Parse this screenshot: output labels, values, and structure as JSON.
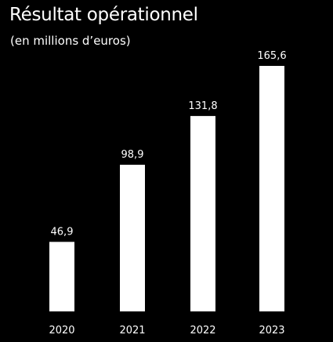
{
  "chart_data": {
    "type": "bar",
    "title": "Résultat opérationnel",
    "subtitle": "(en millions d’euros)",
    "categories": [
      "2020",
      "2021",
      "2022",
      "2023"
    ],
    "values": [
      46.9,
      98.9,
      131.8,
      165.6
    ],
    "value_labels": [
      "46,9",
      "98,9",
      "131,8",
      "165,6"
    ],
    "xlabel": "",
    "ylabel": "",
    "ylim": [
      0,
      165.6
    ],
    "grid": false,
    "legend": "none",
    "colors": {
      "background": "#000000",
      "bar": "#ffffff",
      "text": "#ffffff"
    }
  }
}
